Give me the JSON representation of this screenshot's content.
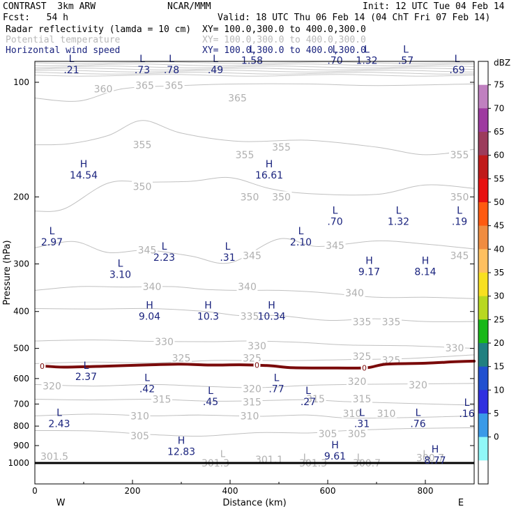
{
  "header": {
    "product": "CONTRAST  3km ARW",
    "center": "NCAR/MMM",
    "init": "Init: 12 UTC Tue 04 Feb 14",
    "fcst": "Fcst:   54 h",
    "valid": "Valid: 18 UTC Thu 06 Feb 14 (04 ChT Fri 07 Feb 14)"
  },
  "fields": [
    {
      "name": "Radar reflectivity (lamda = 10 cm)",
      "xy": "XY= 100.0,300.0 to 400.0,300.0",
      "color": "#000000"
    },
    {
      "name": "Potential temperature",
      "xy": "XY= 100.0,300.0 to 400.0,300.0",
      "color": "#b8b8b8"
    },
    {
      "name": "Horizontal wind speed",
      "xy": "XY= 100.0,300.0 to 400.0,300.0",
      "color": "#1a237e"
    }
  ],
  "colorbar": {
    "unit": "dBZ",
    "labels": [
      "75",
      "70",
      "65",
      "60",
      "55",
      "50",
      "45",
      "40",
      "35",
      "30",
      "25",
      "20",
      "15",
      "10",
      "5",
      "0"
    ],
    "colors": [
      "#ffffff",
      "#c080c0",
      "#9e3aa0",
      "#9c3c5c",
      "#c01a1a",
      "#e81010",
      "#ff5a10",
      "#f08c40",
      "#ffc060",
      "#f8e020",
      "#b8d820",
      "#18b818",
      "#208080",
      "#2050d0",
      "#3030e0",
      "#3a9ae8",
      "#90f8f8",
      "#ffffff"
    ]
  },
  "chart_data": {
    "type": "cross-section",
    "xlabel": "Distance (km)",
    "ylabel": "Pressure (hPa)",
    "xlim": [
      0,
      900
    ],
    "ylim": [
      1000,
      50
    ],
    "xticks": [
      "0",
      "200",
      "400",
      "600",
      "800"
    ],
    "yticks": [
      "100",
      "200",
      "300",
      "400",
      "500",
      "600",
      "700",
      "800",
      "900",
      "1000"
    ],
    "endpoints": [
      "W",
      "E"
    ],
    "freezing_label": "0",
    "theta_isentropes": [
      {
        "value": 360,
        "pts": [
          [
            0,
            110
          ],
          [
            90,
            112
          ],
          [
            180,
            104
          ],
          [
            300,
            102
          ],
          [
            420,
            101
          ],
          [
            560,
            101
          ],
          [
            700,
            102
          ],
          [
            900,
            101
          ]
        ]
      },
      {
        "value": 355,
        "pts": [
          [
            0,
            146
          ],
          [
            70,
            145
          ],
          [
            150,
            138
          ],
          [
            220,
            126
          ],
          [
            300,
            136
          ],
          [
            420,
            143
          ],
          [
            560,
            142
          ],
          [
            700,
            148
          ],
          [
            800,
            155
          ],
          [
            900,
            150
          ]
        ]
      },
      {
        "value": 350,
        "pts": [
          [
            0,
            218
          ],
          [
            60,
            215
          ],
          [
            150,
            184
          ],
          [
            230,
            183
          ],
          [
            320,
            182
          ],
          [
            400,
            178
          ],
          [
            480,
            190
          ],
          [
            560,
            196
          ],
          [
            700,
            197
          ],
          [
            800,
            186
          ],
          [
            900,
            190
          ]
        ]
      },
      {
        "value": 345,
        "pts": [
          [
            0,
            272
          ],
          [
            80,
            262
          ],
          [
            150,
            280
          ],
          [
            230,
            276
          ],
          [
            320,
            286
          ],
          [
            400,
            298
          ],
          [
            500,
            258
          ],
          [
            580,
            270
          ],
          [
            700,
            261
          ],
          [
            800,
            266
          ],
          [
            900,
            274
          ]
        ]
      },
      {
        "value": 340,
        "pts": [
          [
            0,
            352
          ],
          [
            90,
            344
          ],
          [
            180,
            345
          ],
          [
            280,
            344
          ],
          [
            350,
            350
          ],
          [
            420,
            352
          ],
          [
            500,
            352
          ],
          [
            580,
            356
          ],
          [
            700,
            367
          ],
          [
            800,
            367
          ],
          [
            900,
            370
          ]
        ]
      },
      {
        "value": 335,
        "pts": [
          [
            0,
            393
          ],
          [
            120,
            394
          ],
          [
            240,
            393
          ],
          [
            350,
            400
          ],
          [
            420,
            410
          ],
          [
            500,
            410
          ],
          [
            600,
            422
          ],
          [
            700,
            418
          ],
          [
            800,
            425
          ],
          [
            900,
            425
          ]
        ]
      },
      {
        "value": 330,
        "pts": [
          [
            0,
            478
          ],
          [
            120,
            475
          ],
          [
            240,
            479
          ],
          [
            360,
            480
          ],
          [
            440,
            478
          ],
          [
            540,
            482
          ],
          [
            640,
            490
          ],
          [
            760,
            492
          ],
          [
            900,
            500
          ]
        ]
      },
      {
        "value": 325,
        "pts": [
          [
            0,
            548
          ],
          [
            120,
            543
          ],
          [
            240,
            546
          ],
          [
            360,
            538
          ],
          [
            440,
            538
          ],
          [
            540,
            538
          ],
          [
            640,
            535
          ],
          [
            760,
            532
          ],
          [
            900,
            520
          ]
        ]
      },
      {
        "value": 320,
        "pts": [
          [
            0,
            622
          ],
          [
            120,
            628
          ],
          [
            240,
            622
          ],
          [
            360,
            630
          ],
          [
            460,
            634
          ],
          [
            560,
            625
          ],
          [
            640,
            622
          ],
          [
            760,
            620
          ],
          [
            900,
            618
          ]
        ]
      },
      {
        "value": 315,
        "pts": [
          [
            0,
            680
          ],
          [
            120,
            683
          ],
          [
            240,
            680
          ],
          [
            360,
            688
          ],
          [
            460,
            686
          ],
          [
            560,
            682
          ],
          [
            640,
            690
          ],
          [
            760,
            697
          ],
          [
            900,
            705
          ]
        ]
      },
      {
        "value": 310,
        "pts": [
          [
            0,
            752
          ],
          [
            120,
            744
          ],
          [
            240,
            752
          ],
          [
            340,
            748
          ],
          [
            460,
            754
          ],
          [
            560,
            748
          ],
          [
            640,
            762
          ],
          [
            760,
            760
          ],
          [
            900,
            752
          ]
        ]
      },
      {
        "value": 305,
        "pts": [
          [
            0,
            822
          ],
          [
            120,
            824
          ],
          [
            240,
            842
          ],
          [
            340,
            850
          ],
          [
            460,
            832
          ],
          [
            560,
            834
          ],
          [
            640,
            822
          ],
          [
            760,
            812
          ],
          [
            900,
            808
          ]
        ]
      }
    ],
    "theta_labels": [
      {
        "x": 140,
        "p": 104,
        "text": "360"
      },
      {
        "x": 225,
        "p": 102,
        "text": "365"
      },
      {
        "x": 285,
        "p": 102,
        "text": "365"
      },
      {
        "x": 415,
        "p": 110,
        "text": "365"
      },
      {
        "x": 220,
        "p": 146,
        "text": "355"
      },
      {
        "x": 430,
        "p": 155,
        "text": "355"
      },
      {
        "x": 505,
        "p": 148,
        "text": "355"
      },
      {
        "x": 870,
        "p": 155,
        "text": "355"
      },
      {
        "x": 220,
        "p": 188,
        "text": "350"
      },
      {
        "x": 440,
        "p": 200,
        "text": "350"
      },
      {
        "x": 505,
        "p": 200,
        "text": "350"
      },
      {
        "x": 870,
        "p": 200,
        "text": "350"
      },
      {
        "x": 230,
        "p": 276,
        "text": "345"
      },
      {
        "x": 445,
        "p": 285,
        "text": "345"
      },
      {
        "x": 615,
        "p": 268,
        "text": "345"
      },
      {
        "x": 870,
        "p": 285,
        "text": "345"
      },
      {
        "x": 240,
        "p": 344,
        "text": "340"
      },
      {
        "x": 435,
        "p": 344,
        "text": "340"
      },
      {
        "x": 655,
        "p": 357,
        "text": "340"
      },
      {
        "x": 440,
        "p": 412,
        "text": "335"
      },
      {
        "x": 670,
        "p": 426,
        "text": "335"
      },
      {
        "x": 730,
        "p": 426,
        "text": "335"
      },
      {
        "x": 265,
        "p": 480,
        "text": "330"
      },
      {
        "x": 455,
        "p": 492,
        "text": "330"
      },
      {
        "x": 860,
        "p": 499,
        "text": "330"
      },
      {
        "x": 300,
        "p": 530,
        "text": "325"
      },
      {
        "x": 445,
        "p": 530,
        "text": "325"
      },
      {
        "x": 670,
        "p": 524,
        "text": "325"
      },
      {
        "x": 730,
        "p": 537,
        "text": "325"
      },
      {
        "x": 35,
        "p": 627,
        "text": "320"
      },
      {
        "x": 445,
        "p": 638,
        "text": "320"
      },
      {
        "x": 660,
        "p": 611,
        "text": "320"
      },
      {
        "x": 785,
        "p": 624,
        "text": "320"
      },
      {
        "x": 260,
        "p": 680,
        "text": "315"
      },
      {
        "x": 445,
        "p": 691,
        "text": "315"
      },
      {
        "x": 575,
        "p": 678,
        "text": "315"
      },
      {
        "x": 670,
        "p": 678,
        "text": "315"
      },
      {
        "x": 215,
        "p": 752,
        "text": "310"
      },
      {
        "x": 440,
        "p": 753,
        "text": "310"
      },
      {
        "x": 650,
        "p": 742,
        "text": "310"
      },
      {
        "x": 720,
        "p": 742,
        "text": "310"
      },
      {
        "x": 215,
        "p": 848,
        "text": "305"
      },
      {
        "x": 600,
        "p": 837,
        "text": "305"
      },
      {
        "x": 660,
        "p": 837,
        "text": "305"
      },
      {
        "x": 40,
        "p": 960,
        "text": "301.5"
      },
      {
        "x": 370,
        "p": 1000,
        "text": "301.3"
      },
      {
        "x": 480,
        "p": 980,
        "text": "301.1"
      },
      {
        "x": 570,
        "p": 1000,
        "text": "301.3"
      },
      {
        "x": 680,
        "p": 1000,
        "text": "300.7"
      },
      {
        "x": 810,
        "p": 968,
        "text": "300.7"
      }
    ],
    "theta_markers": [
      {
        "x": 385,
        "p": 945,
        "text": "L"
      },
      {
        "x": 555,
        "p": 965,
        "text": "L"
      },
      {
        "x": 665,
        "p": 965,
        "text": "L"
      },
      {
        "x": 800,
        "p": 945,
        "text": "L"
      }
    ],
    "freezing_level": [
      [
        15,
        556
      ],
      [
        60,
        560
      ],
      [
        140,
        557
      ],
      [
        240,
        552
      ],
      [
        300,
        550
      ],
      [
        360,
        553
      ],
      [
        420,
        552
      ],
      [
        480,
        555
      ],
      [
        530,
        562
      ],
      [
        620,
        563
      ],
      [
        680,
        562
      ],
      [
        720,
        550
      ],
      [
        800,
        547
      ],
      [
        860,
        542
      ],
      [
        900,
        540
      ]
    ],
    "freezing_label_positions": [
      [
        15,
        556
      ],
      [
        455,
        553
      ],
      [
        675,
        562
      ]
    ],
    "wind_extrema": [
      {
        "type": "L",
        "value": ".21",
        "x": 75,
        "p": 90
      },
      {
        "type": "L",
        "value": ".73",
        "x": 220,
        "p": 90
      },
      {
        "type": "L",
        "value": ".78",
        "x": 280,
        "p": 90
      },
      {
        "type": "L",
        "value": ".49",
        "x": 370,
        "p": 90
      },
      {
        "type": "L",
        "value": "1.58",
        "x": 445,
        "p": 85
      },
      {
        "type": "L",
        "value": ".70",
        "x": 615,
        "p": 85
      },
      {
        "type": "L",
        "value": "1.32",
        "x": 680,
        "p": 85
      },
      {
        "type": "L",
        "value": ".57",
        "x": 760,
        "p": 85
      },
      {
        "type": "L",
        "value": ".69",
        "x": 865,
        "p": 90
      },
      {
        "type": "H",
        "value": "14.54",
        "x": 100,
        "p": 170
      },
      {
        "type": "H",
        "value": "16.61",
        "x": 480,
        "p": 170
      },
      {
        "type": "L",
        "value": ".70",
        "x": 615,
        "p": 225
      },
      {
        "type": "L",
        "value": "1.32",
        "x": 745,
        "p": 225
      },
      {
        "type": "L",
        "value": ".19",
        "x": 870,
        "p": 225
      },
      {
        "type": "L",
        "value": "2.97",
        "x": 35,
        "p": 255
      },
      {
        "type": "L",
        "value": "2.23",
        "x": 265,
        "p": 280
      },
      {
        "type": "L",
        "value": ".31",
        "x": 395,
        "p": 280
      },
      {
        "type": "L",
        "value": "2.10",
        "x": 545,
        "p": 255
      },
      {
        "type": "L",
        "value": "3.10",
        "x": 175,
        "p": 310
      },
      {
        "type": "H",
        "value": "9.17",
        "x": 685,
        "p": 305
      },
      {
        "type": "H",
        "value": "8.14",
        "x": 800,
        "p": 305
      },
      {
        "type": "H",
        "value": "9.04",
        "x": 235,
        "p": 400
      },
      {
        "type": "H",
        "value": "10.3",
        "x": 355,
        "p": 400
      },
      {
        "type": "H",
        "value": "10.34",
        "x": 485,
        "p": 400
      },
      {
        "type": "L",
        "value": "2.37",
        "x": 105,
        "p": 575
      },
      {
        "type": "L",
        "value": ".42",
        "x": 230,
        "p": 620
      },
      {
        "type": "L",
        "value": ".77",
        "x": 495,
        "p": 620
      },
      {
        "type": "L",
        "value": ".45",
        "x": 360,
        "p": 670
      },
      {
        "type": "L",
        "value": ".27",
        "x": 560,
        "p": 670
      },
      {
        "type": "L",
        "value": ".16",
        "x": 885,
        "p": 720
      },
      {
        "type": "L",
        "value": "2.43",
        "x": 50,
        "p": 765
      },
      {
        "type": "L",
        "value": ".31",
        "x": 670,
        "p": 765
      },
      {
        "type": "L",
        "value": ".76",
        "x": 785,
        "p": 765
      },
      {
        "type": "H",
        "value": "12.83",
        "x": 300,
        "p": 905
      },
      {
        "type": "H",
        "value": "9.61",
        "x": 615,
        "p": 930
      },
      {
        "type": "H",
        "value": "8.77",
        "x": 820,
        "p": 955
      }
    ]
  }
}
